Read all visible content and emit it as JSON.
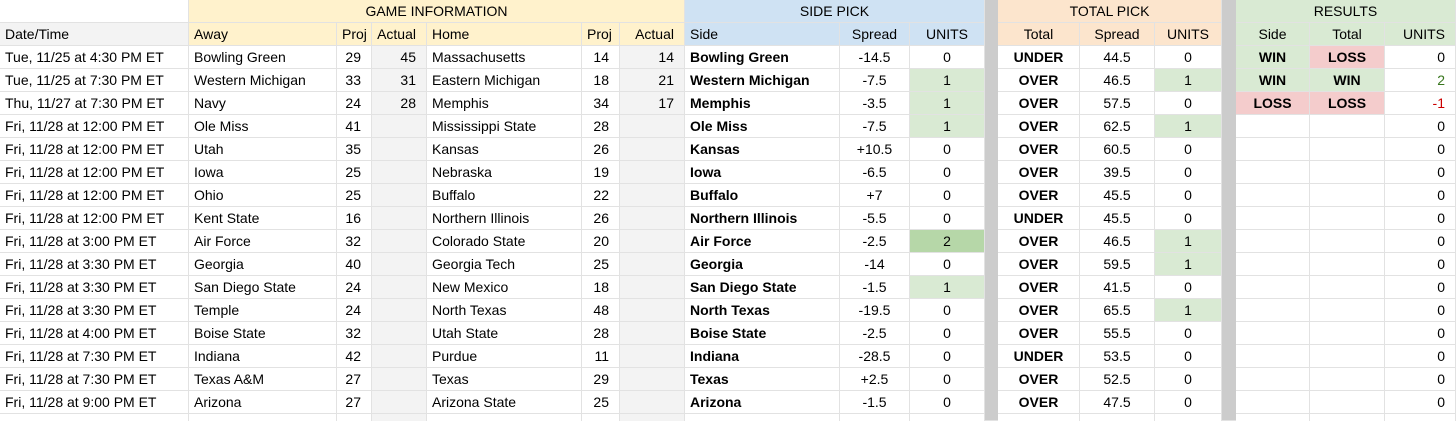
{
  "groups": [
    "GAME INFORMATION",
    "SIDE PICK",
    "TOTAL PICK",
    "RESULTS"
  ],
  "headers": [
    "Date/Time",
    "Away",
    "Proj",
    "Actual",
    "Home",
    "Proj",
    "Actual",
    "Side",
    "Spread",
    "UNITS",
    "Total",
    "Spread",
    "UNITS",
    "Side",
    "Total",
    "UNITS"
  ],
  "rows": [
    [
      "Tue, 11/25 at 4:30 PM ET",
      "Bowling Green",
      "29",
      "45",
      "Massachusetts",
      "14",
      "14",
      "Bowling Green",
      "-14.5",
      "0",
      "UNDER",
      "44.5",
      "0",
      "WIN",
      "LOSS",
      "0"
    ],
    [
      "Tue, 11/25 at 7:30 PM ET",
      "Western Michigan",
      "33",
      "31",
      "Eastern Michigan",
      "18",
      "21",
      "Western Michigan",
      "-7.5",
      "1",
      "OVER",
      "46.5",
      "1",
      "WIN",
      "WIN",
      "2"
    ],
    [
      "Thu, 11/27 at 7:30 PM ET",
      "Navy",
      "24",
      "28",
      "Memphis",
      "34",
      "17",
      "Memphis",
      "-3.5",
      "1",
      "OVER",
      "57.5",
      "0",
      "LOSS",
      "LOSS",
      "-1"
    ],
    [
      "Fri, 11/28 at 12:00 PM ET",
      "Ole Miss",
      "41",
      null,
      "Mississippi State",
      "28",
      null,
      "Ole Miss",
      "-7.5",
      "1",
      "OVER",
      "62.5",
      "1",
      null,
      null,
      "0"
    ],
    [
      "Fri, 11/28 at 12:00 PM ET",
      "Utah",
      "35",
      null,
      "Kansas",
      "26",
      null,
      "Kansas",
      "+10.5",
      "0",
      "OVER",
      "60.5",
      "0",
      null,
      null,
      "0"
    ],
    [
      "Fri, 11/28 at 12:00 PM ET",
      "Iowa",
      "25",
      null,
      "Nebraska",
      "19",
      null,
      "Iowa",
      "-6.5",
      "0",
      "OVER",
      "39.5",
      "0",
      null,
      null,
      "0"
    ],
    [
      "Fri, 11/28 at 12:00 PM ET",
      "Ohio",
      "25",
      null,
      "Buffalo",
      "22",
      null,
      "Buffalo",
      "+7",
      "0",
      "OVER",
      "45.5",
      "0",
      null,
      null,
      "0"
    ],
    [
      "Fri, 11/28 at 12:00 PM ET",
      "Kent State",
      "16",
      null,
      "Northern Illinois",
      "26",
      null,
      "Northern Illinois",
      "-5.5",
      "0",
      "UNDER",
      "45.5",
      "0",
      null,
      null,
      "0"
    ],
    [
      "Fri, 11/28 at 3:00 PM ET",
      "Air Force",
      "32",
      null,
      "Colorado State",
      "20",
      null,
      "Air Force",
      "-2.5",
      "2",
      "OVER",
      "46.5",
      "1",
      null,
      null,
      "0"
    ],
    [
      "Fri, 11/28 at 3:30 PM ET",
      "Georgia",
      "40",
      null,
      "Georgia Tech",
      "25",
      null,
      "Georgia",
      "-14",
      "0",
      "OVER",
      "59.5",
      "1",
      null,
      null,
      "0"
    ],
    [
      "Fri, 11/28 at 3:30 PM ET",
      "San Diego State",
      "24",
      null,
      "New Mexico",
      "18",
      null,
      "San Diego State",
      "-1.5",
      "1",
      "OVER",
      "41.5",
      "0",
      null,
      null,
      "0"
    ],
    [
      "Fri, 11/28 at 3:30 PM ET",
      "Temple",
      "24",
      null,
      "North Texas",
      "48",
      null,
      "North Texas",
      "-19.5",
      "0",
      "OVER",
      "65.5",
      "1",
      null,
      null,
      "0"
    ],
    [
      "Fri, 11/28 at 4:00 PM ET",
      "Boise State",
      "32",
      null,
      "Utah State",
      "28",
      null,
      "Boise State",
      "-2.5",
      "0",
      "OVER",
      "55.5",
      "0",
      null,
      null,
      "0"
    ],
    [
      "Fri, 11/28 at 7:30 PM ET",
      "Indiana",
      "42",
      null,
      "Purdue",
      "11",
      null,
      "Indiana",
      "-28.5",
      "0",
      "UNDER",
      "53.5",
      "0",
      null,
      null,
      "0"
    ],
    [
      "Fri, 11/28 at 7:30 PM ET",
      "Texas A&M",
      "27",
      null,
      "Texas",
      "29",
      null,
      "Texas",
      "+2.5",
      "0",
      "OVER",
      "52.5",
      "0",
      null,
      null,
      "0"
    ],
    [
      "Fri, 11/28 at 9:00 PM ET",
      "Arizona",
      "27",
      null,
      "Arizona State",
      "25",
      null,
      "Arizona",
      "-1.5",
      "0",
      "OVER",
      "47.5",
      "0",
      null,
      null,
      "0"
    ]
  ]
}
